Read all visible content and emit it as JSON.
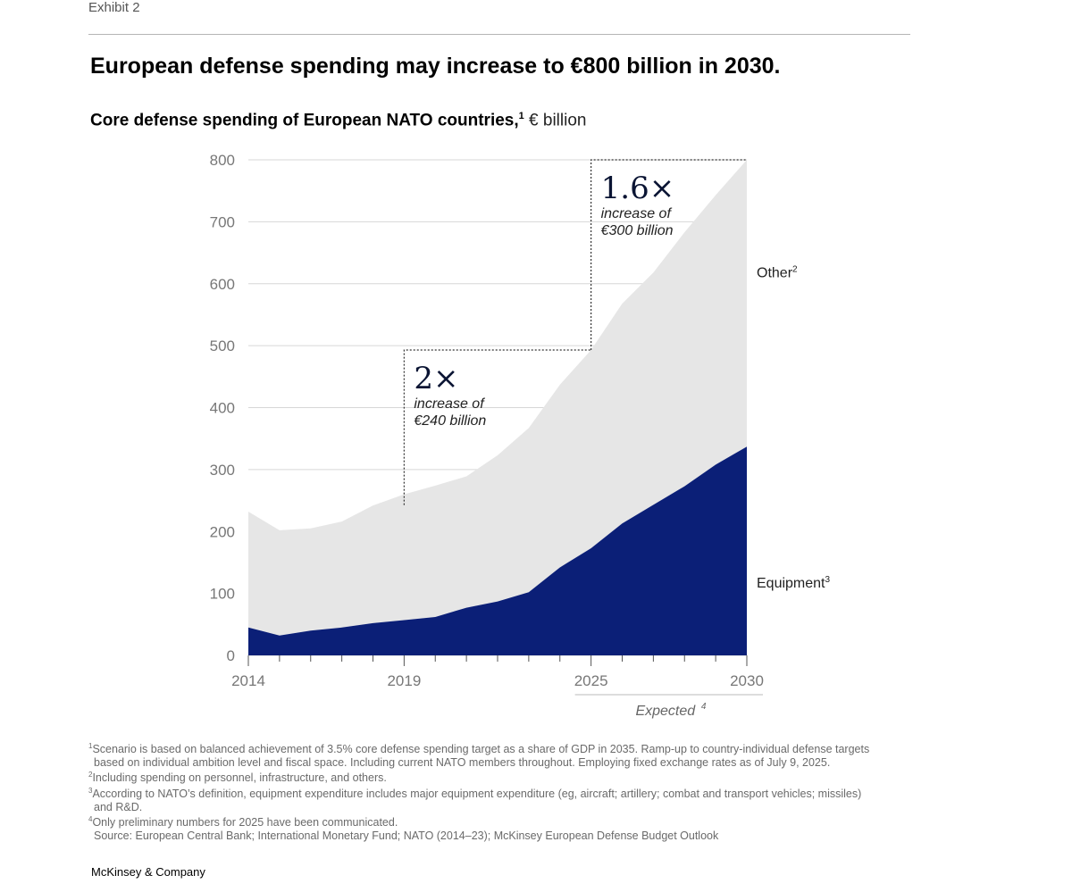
{
  "header": {
    "exhibit": "Exhibit 2",
    "title": "European defense spending may increase to €800 billion in 2030.",
    "subtitle": "Core defense spending of European NATO countries,",
    "subtitle_sup": "1",
    "subtitle_unit": " € billion"
  },
  "chart_data": {
    "type": "area",
    "stacked": true,
    "x": [
      2014,
      2015,
      2016,
      2017,
      2018,
      2019,
      2020,
      2021,
      2022,
      2023,
      2024,
      2025,
      2026,
      2027,
      2028,
      2029,
      2030
    ],
    "x_tick_labels": [
      "2014",
      "2019",
      "2025",
      "2030"
    ],
    "y_tick_labels": [
      "0",
      "100",
      "200",
      "300",
      "400",
      "500",
      "600",
      "700",
      "800"
    ],
    "ylim": [
      0,
      800
    ],
    "grid": true,
    "series": [
      {
        "name": "Equipment",
        "label_sup": "3",
        "color": "#0b1f77",
        "values": [
          45,
          32,
          40,
          45,
          52,
          57,
          62,
          77,
          87,
          102,
          142,
          173,
          213,
          243,
          273,
          308,
          337
        ]
      },
      {
        "name": "Other",
        "label_sup": "2",
        "color": "#e6e6e6",
        "values": [
          187,
          170,
          165,
          171,
          190,
          203,
          212,
          212,
          236,
          265,
          295,
          320,
          355,
          375,
          410,
          435,
          463
        ]
      }
    ],
    "totals": [
      232,
      202,
      205,
      216,
      242,
      260,
      274,
      289,
      323,
      367,
      437,
      493,
      568,
      618,
      683,
      743,
      800
    ],
    "annotations": [
      {
        "multiplier": "2×",
        "line1": "increase of",
        "line2": "€240 billion",
        "from_year": 2019,
        "level": 493
      },
      {
        "multiplier": "1.6×",
        "line1": "increase of",
        "line2": "€300 billion",
        "from_year": 2025,
        "level": 800
      }
    ],
    "expected_label": "Expected",
    "expected_sup": "4",
    "expected_range": [
      2025,
      2030
    ]
  },
  "footnotes": {
    "f1_sup": "1",
    "f1_line1": "Scenario is based on balanced achievement of 3.5% core defense spending target as a share of GDP in 2035. Ramp-up to country-individual defense targets",
    "f1_line2": "based on individual ambition level and fiscal space. Including current NATO members throughout. Employing fixed exchange rates as of July 9, 2025.",
    "f2_sup": "2",
    "f2": "Including spending on personnel, infrastructure, and others.",
    "f3_sup": "3",
    "f3_line1": "According to NATO’s definition, equipment expenditure includes major equipment expenditure (eg, aircraft; artillery; combat and transport vehicles; missiles)",
    "f3_line2": "and R&D.",
    "f4_sup": "4",
    "f4": "Only preliminary numbers for 2025 have been communicated.",
    "source": "Source: European Central Bank; International Monetary Fund; NATO (2014–23); McKinsey European Defense Budget Outlook"
  },
  "brand": "McKinsey & Company"
}
